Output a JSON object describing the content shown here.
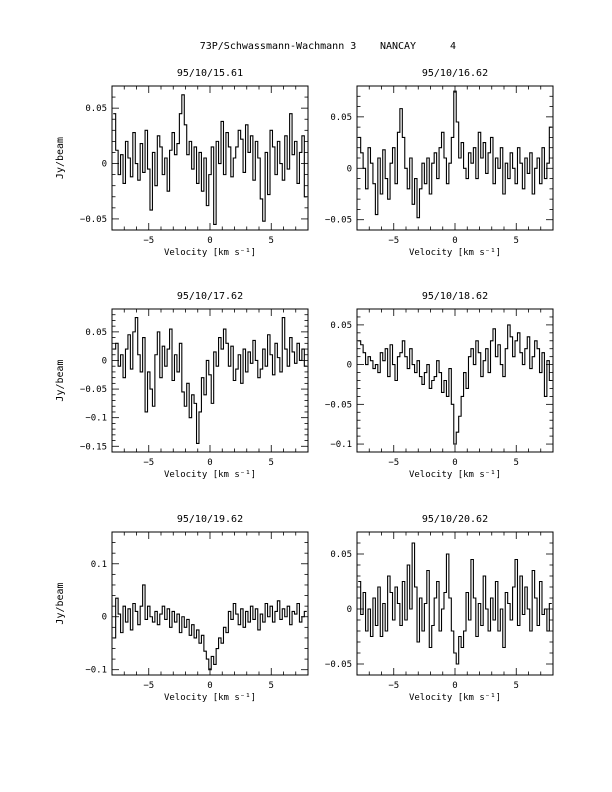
{
  "header": {
    "title": "73P/Schwassmann-Wachmann 3",
    "station": "NANCAY",
    "page_number": "4"
  },
  "chart_data": [
    {
      "type": "line",
      "title": "95/10/15.61",
      "xlabel": "Velocity [km s⁻¹]",
      "ylabel": "Jy/beam",
      "xlim": [
        -8,
        8
      ],
      "ylim": [
        -0.06,
        0.07
      ],
      "xticks": [
        -5,
        0,
        5
      ],
      "yticks": [
        0.05,
        0,
        -0.05
      ],
      "ytick_labels": [
        "0.05",
        "0",
        "−0.05"
      ],
      "grid": false,
      "x": [
        -7.8,
        -7.6,
        -7.4,
        -7.2,
        -7.0,
        -6.8,
        -6.6,
        -6.4,
        -6.2,
        -6.0,
        -5.8,
        -5.6,
        -5.4,
        -5.2,
        -5.0,
        -4.8,
        -4.6,
        -4.4,
        -4.2,
        -4.0,
        -3.8,
        -3.6,
        -3.4,
        -3.2,
        -3.0,
        -2.8,
        -2.6,
        -2.4,
        -2.2,
        -2.0,
        -1.8,
        -1.6,
        -1.4,
        -1.2,
        -1.0,
        -0.8,
        -0.6,
        -0.4,
        -0.2,
        0.0,
        0.2,
        0.4,
        0.6,
        0.8,
        1.0,
        1.2,
        1.4,
        1.6,
        1.8,
        2.0,
        2.2,
        2.4,
        2.6,
        2.8,
        3.0,
        3.2,
        3.4,
        3.6,
        3.8,
        4.0,
        4.2,
        4.4,
        4.6,
        4.8,
        5.0,
        5.2,
        5.4,
        5.6,
        5.8,
        6.0,
        6.2,
        6.4,
        6.6,
        6.8,
        7.0,
        7.2,
        7.4,
        7.6,
        7.8
      ],
      "values": [
        0.045,
        0.012,
        -0.01,
        0.008,
        -0.018,
        0.02,
        0.005,
        -0.012,
        0.028,
        0.0,
        -0.015,
        0.018,
        -0.008,
        0.03,
        -0.005,
        -0.042,
        0.01,
        -0.02,
        0.025,
        0.015,
        -0.01,
        0.005,
        -0.025,
        0.012,
        0.028,
        0.008,
        0.018,
        0.045,
        0.062,
        0.035,
        0.008,
        0.02,
        -0.005,
        0.015,
        -0.018,
        0.01,
        -0.025,
        0.005,
        -0.038,
        -0.01,
        0.015,
        -0.055,
        0.02,
        0.0,
        0.038,
        -0.01,
        0.028,
        0.015,
        -0.012,
        0.005,
        0.015,
        0.03,
        0.022,
        -0.008,
        0.035,
        0.01,
        0.025,
        -0.015,
        0.02,
        0.005,
        -0.032,
        -0.052,
        0.01,
        -0.028,
        0.03,
        0.015,
        -0.01,
        0.02,
        0.0,
        -0.015,
        0.025,
        -0.005,
        0.045,
        0.008,
        0.02,
        -0.018,
        0.01,
        0.025,
        -0.03
      ]
    },
    {
      "type": "line",
      "title": "95/10/16.62",
      "xlabel": "Velocity [km s⁻¹]",
      "ylabel": "",
      "xlim": [
        -8,
        8
      ],
      "ylim": [
        -0.06,
        0.08
      ],
      "xticks": [
        -5,
        0,
        5
      ],
      "yticks": [
        0.05,
        0,
        -0.05
      ],
      "ytick_labels": [
        "0.05",
        "0",
        "−0.05"
      ],
      "grid": false,
      "x": [
        -7.8,
        -7.6,
        -7.4,
        -7.2,
        -7.0,
        -6.8,
        -6.6,
        -6.4,
        -6.2,
        -6.0,
        -5.8,
        -5.6,
        -5.4,
        -5.2,
        -5.0,
        -4.8,
        -4.6,
        -4.4,
        -4.2,
        -4.0,
        -3.8,
        -3.6,
        -3.4,
        -3.2,
        -3.0,
        -2.8,
        -2.6,
        -2.4,
        -2.2,
        -2.0,
        -1.8,
        -1.6,
        -1.4,
        -1.2,
        -1.0,
        -0.8,
        -0.6,
        -0.4,
        -0.2,
        0.0,
        0.2,
        0.4,
        0.6,
        0.8,
        1.0,
        1.2,
        1.4,
        1.6,
        1.8,
        2.0,
        2.2,
        2.4,
        2.6,
        2.8,
        3.0,
        3.2,
        3.4,
        3.6,
        3.8,
        4.0,
        4.2,
        4.4,
        4.6,
        4.8,
        5.0,
        5.2,
        5.4,
        5.6,
        5.8,
        6.0,
        6.2,
        6.4,
        6.6,
        6.8,
        7.0,
        7.2,
        7.4,
        7.6,
        7.8
      ],
      "values": [
        0.03,
        0.015,
        0.0,
        -0.02,
        0.02,
        0.005,
        -0.015,
        -0.045,
        0.01,
        -0.025,
        0.018,
        -0.01,
        -0.03,
        0.005,
        0.02,
        -0.015,
        0.035,
        0.058,
        0.03,
        0.0,
        -0.02,
        0.01,
        -0.035,
        -0.01,
        -0.048,
        -0.02,
        0.005,
        -0.015,
        0.01,
        -0.025,
        0.005,
        0.015,
        -0.01,
        0.02,
        0.035,
        0.01,
        -0.015,
        0.005,
        0.03,
        0.075,
        0.045,
        0.01,
        0.025,
        0.0,
        -0.01,
        0.015,
        0.005,
        0.02,
        -0.01,
        0.035,
        0.01,
        0.025,
        -0.005,
        0.015,
        0.03,
        -0.015,
        0.01,
        0.0,
        0.02,
        -0.025,
        0.005,
        -0.01,
        0.015,
        0.0,
        -0.015,
        0.02,
        0.005,
        -0.02,
        0.01,
        -0.005,
        0.015,
        -0.025,
        0.0,
        0.01,
        -0.015,
        0.02,
        -0.01,
        0.005,
        0.04
      ]
    },
    {
      "type": "line",
      "title": "95/10/17.62",
      "xlabel": "Velocity [km s⁻¹]",
      "ylabel": "Jy/beam",
      "xlim": [
        -8,
        8
      ],
      "ylim": [
        -0.16,
        0.09
      ],
      "xticks": [
        -5,
        0,
        5
      ],
      "yticks": [
        0.05,
        0,
        -0.05,
        -0.1,
        -0.15
      ],
      "ytick_labels": [
        "0.05",
        "0",
        "−0.05",
        "−0.1",
        "−0.15"
      ],
      "grid": false,
      "x": [
        -7.8,
        -7.6,
        -7.4,
        -7.2,
        -7.0,
        -6.8,
        -6.6,
        -6.4,
        -6.2,
        -6.0,
        -5.8,
        -5.6,
        -5.4,
        -5.2,
        -5.0,
        -4.8,
        -4.6,
        -4.4,
        -4.2,
        -4.0,
        -3.8,
        -3.6,
        -3.4,
        -3.2,
        -3.0,
        -2.8,
        -2.6,
        -2.4,
        -2.2,
        -2.0,
        -1.8,
        -1.6,
        -1.4,
        -1.2,
        -1.0,
        -0.8,
        -0.6,
        -0.4,
        -0.2,
        0.0,
        0.2,
        0.4,
        0.6,
        0.8,
        1.0,
        1.2,
        1.4,
        1.6,
        1.8,
        2.0,
        2.2,
        2.4,
        2.6,
        2.8,
        3.0,
        3.2,
        3.4,
        3.6,
        3.8,
        4.0,
        4.2,
        4.4,
        4.6,
        4.8,
        5.0,
        5.2,
        5.4,
        5.6,
        5.8,
        6.0,
        6.2,
        6.4,
        6.6,
        6.8,
        7.0,
        7.2,
        7.4,
        7.6,
        7.8
      ],
      "values": [
        0.02,
        0.03,
        -0.01,
        0.01,
        -0.03,
        0.02,
        0.045,
        -0.015,
        0.05,
        0.075,
        0.01,
        -0.02,
        0.04,
        -0.09,
        -0.02,
        -0.05,
        -0.08,
        0.01,
        0.05,
        -0.03,
        0.025,
        -0.01,
        0.02,
        0.055,
        -0.035,
        0.01,
        -0.02,
        0.03,
        -0.055,
        -0.08,
        -0.04,
        -0.1,
        -0.06,
        -0.075,
        -0.145,
        -0.09,
        -0.03,
        -0.06,
        0.0,
        -0.025,
        -0.075,
        0.015,
        -0.01,
        0.04,
        0.02,
        0.055,
        0.03,
        -0.01,
        0.025,
        -0.035,
        -0.015,
        0.01,
        -0.04,
        0.02,
        -0.02,
        0.015,
        -0.005,
        0.035,
        0.0,
        -0.03,
        -0.015,
        0.02,
        -0.01,
        0.045,
        0.01,
        -0.025,
        0.03,
        0.005,
        -0.02,
        0.075,
        0.02,
        -0.01,
        0.04,
        0.015,
        -0.005,
        0.03,
        0.0,
        0.02,
        -0.01
      ]
    },
    {
      "type": "line",
      "title": "95/10/18.62",
      "xlabel": "Velocity [km s⁻¹]",
      "ylabel": "",
      "xlim": [
        -8,
        8
      ],
      "ylim": [
        -0.11,
        0.07
      ],
      "xticks": [
        -5,
        0,
        5
      ],
      "yticks": [
        0.05,
        0,
        -0.05,
        -0.1
      ],
      "ytick_labels": [
        "0.05",
        "0",
        "−0.05",
        "−0.1"
      ],
      "grid": false,
      "x": [
        -7.8,
        -7.6,
        -7.4,
        -7.2,
        -7.0,
        -6.8,
        -6.6,
        -6.4,
        -6.2,
        -6.0,
        -5.8,
        -5.6,
        -5.4,
        -5.2,
        -5.0,
        -4.8,
        -4.6,
        -4.4,
        -4.2,
        -4.0,
        -3.8,
        -3.6,
        -3.4,
        -3.2,
        -3.0,
        -2.8,
        -2.6,
        -2.4,
        -2.2,
        -2.0,
        -1.8,
        -1.6,
        -1.4,
        -1.2,
        -1.0,
        -0.8,
        -0.6,
        -0.4,
        -0.2,
        0.0,
        0.2,
        0.4,
        0.6,
        0.8,
        1.0,
        1.2,
        1.4,
        1.6,
        1.8,
        2.0,
        2.2,
        2.4,
        2.6,
        2.8,
        3.0,
        3.2,
        3.4,
        3.6,
        3.8,
        4.0,
        4.2,
        4.4,
        4.6,
        4.8,
        5.0,
        5.2,
        5.4,
        5.6,
        5.8,
        6.0,
        6.2,
        6.4,
        6.6,
        6.8,
        7.0,
        7.2,
        7.4,
        7.6,
        7.8
      ],
      "values": [
        0.03,
        0.025,
        0.015,
        0.0,
        0.01,
        0.005,
        -0.005,
        0.0,
        -0.01,
        0.015,
        0.005,
        0.02,
        -0.015,
        0.025,
        0.0,
        -0.02,
        0.01,
        0.015,
        0.03,
        0.01,
        -0.005,
        0.02,
        0.0,
        -0.01,
        0.005,
        -0.015,
        -0.025,
        -0.01,
        0.0,
        -0.03,
        -0.02,
        -0.015,
        0.005,
        -0.01,
        -0.035,
        -0.02,
        -0.04,
        -0.005,
        -0.05,
        -0.1,
        -0.085,
        -0.065,
        -0.04,
        -0.01,
        -0.03,
        0.01,
        0.02,
        0.0,
        0.03,
        0.015,
        -0.015,
        0.005,
        0.02,
        -0.01,
        0.03,
        0.045,
        0.01,
        0.025,
        0.0,
        -0.015,
        0.02,
        0.05,
        0.035,
        0.01,
        0.03,
        0.04,
        0.015,
        0.0,
        0.02,
        0.035,
        -0.005,
        0.01,
        0.03,
        0.02,
        -0.01,
        0.015,
        -0.04,
        0.005,
        -0.02
      ]
    },
    {
      "type": "line",
      "title": "95/10/19.62",
      "xlabel": "Velocity [km s⁻¹]",
      "ylabel": "Jy/beam",
      "xlim": [
        -8,
        8
      ],
      "ylim": [
        -0.11,
        0.16
      ],
      "xticks": [
        -5,
        0,
        5
      ],
      "yticks": [
        0.1,
        0,
        -0.1
      ],
      "ytick_labels": [
        "0.1",
        "0",
        "−0.1"
      ],
      "grid": false,
      "x": [
        -7.8,
        -7.6,
        -7.4,
        -7.2,
        -7.0,
        -6.8,
        -6.6,
        -6.4,
        -6.2,
        -6.0,
        -5.8,
        -5.6,
        -5.4,
        -5.2,
        -5.0,
        -4.8,
        -4.6,
        -4.4,
        -4.2,
        -4.0,
        -3.8,
        -3.6,
        -3.4,
        -3.2,
        -3.0,
        -2.8,
        -2.6,
        -2.4,
        -2.2,
        -2.0,
        -1.8,
        -1.6,
        -1.4,
        -1.2,
        -1.0,
        -0.8,
        -0.6,
        -0.4,
        -0.2,
        0.0,
        0.2,
        0.4,
        0.6,
        0.8,
        1.0,
        1.2,
        1.4,
        1.6,
        1.8,
        2.0,
        2.2,
        2.4,
        2.6,
        2.8,
        3.0,
        3.2,
        3.4,
        3.6,
        3.8,
        4.0,
        4.2,
        4.4,
        4.6,
        4.8,
        5.0,
        5.2,
        5.4,
        5.6,
        5.8,
        6.0,
        6.2,
        6.4,
        6.6,
        6.8,
        7.0,
        7.2,
        7.4,
        7.6,
        7.8
      ],
      "values": [
        -0.04,
        0.035,
        0.005,
        -0.03,
        0.02,
        -0.01,
        0.015,
        -0.025,
        0.025,
        0.01,
        -0.015,
        0.02,
        0.06,
        -0.005,
        0.02,
        0.0,
        -0.01,
        0.01,
        -0.015,
        0.005,
        0.02,
        -0.005,
        0.015,
        -0.02,
        0.01,
        -0.01,
        0.005,
        -0.03,
        0.0,
        -0.02,
        -0.005,
        -0.035,
        -0.015,
        -0.04,
        -0.025,
        -0.05,
        -0.035,
        -0.065,
        -0.08,
        -0.1,
        -0.075,
        -0.09,
        -0.06,
        -0.04,
        -0.05,
        -0.02,
        -0.03,
        0.01,
        -0.005,
        0.025,
        0.005,
        -0.015,
        0.015,
        -0.02,
        0.01,
        -0.01,
        0.02,
        -0.005,
        0.015,
        -0.025,
        0.005,
        -0.01,
        0.025,
        0.0,
        0.02,
        -0.01,
        0.01,
        0.03,
        -0.005,
        0.015,
        0.0,
        0.02,
        -0.015,
        0.01,
        0.005,
        0.025,
        -0.01,
        0.0,
        0.01
      ]
    },
    {
      "type": "line",
      "title": "95/10/20.62",
      "xlabel": "Velocity [km s⁻¹]",
      "ylabel": "",
      "xlim": [
        -8,
        8
      ],
      "ylim": [
        -0.06,
        0.07
      ],
      "xticks": [
        -5,
        0,
        5
      ],
      "yticks": [
        0.05,
        0,
        -0.05
      ],
      "ytick_labels": [
        "0.05",
        "0",
        "−0.05"
      ],
      "grid": false,
      "x": [
        -7.8,
        -7.6,
        -7.4,
        -7.2,
        -7.0,
        -6.8,
        -6.6,
        -6.4,
        -6.2,
        -6.0,
        -5.8,
        -5.6,
        -5.4,
        -5.2,
        -5.0,
        -4.8,
        -4.6,
        -4.4,
        -4.2,
        -4.0,
        -3.8,
        -3.6,
        -3.4,
        -3.2,
        -3.0,
        -2.8,
        -2.6,
        -2.4,
        -2.2,
        -2.0,
        -1.8,
        -1.6,
        -1.4,
        -1.2,
        -1.0,
        -0.8,
        -0.6,
        -0.4,
        -0.2,
        0.0,
        0.2,
        0.4,
        0.6,
        0.8,
        1.0,
        1.2,
        1.4,
        1.6,
        1.8,
        2.0,
        2.2,
        2.4,
        2.6,
        2.8,
        3.0,
        3.2,
        3.4,
        3.6,
        3.8,
        4.0,
        4.2,
        4.4,
        4.6,
        4.8,
        5.0,
        5.2,
        5.4,
        5.6,
        5.8,
        6.0,
        6.2,
        6.4,
        6.6,
        6.8,
        7.0,
        7.2,
        7.4,
        7.6,
        7.8
      ],
      "values": [
        0.025,
        -0.005,
        0.015,
        -0.02,
        0.0,
        -0.025,
        0.01,
        -0.015,
        0.02,
        -0.025,
        0.005,
        -0.02,
        0.03,
        0.015,
        -0.01,
        0.02,
        0.005,
        -0.015,
        0.025,
        -0.01,
        0.04,
        0.0,
        0.06,
        0.02,
        -0.03,
        0.01,
        -0.02,
        0.005,
        0.035,
        -0.035,
        -0.015,
        0.01,
        0.025,
        -0.02,
        0.0,
        0.015,
        0.05,
        0.01,
        -0.02,
        -0.04,
        -0.05,
        -0.025,
        -0.035,
        -0.02,
        0.015,
        -0.01,
        0.045,
        0.01,
        -0.025,
        0.005,
        -0.015,
        0.03,
        0.0,
        -0.02,
        0.01,
        -0.01,
        0.025,
        -0.02,
        0.0,
        -0.035,
        0.015,
        0.005,
        -0.01,
        0.02,
        0.045,
        -0.015,
        0.03,
        -0.005,
        0.02,
        0.0,
        -0.02,
        0.035,
        0.01,
        -0.015,
        0.025,
        -0.005,
        0.0,
        -0.02,
        0.005
      ]
    }
  ]
}
